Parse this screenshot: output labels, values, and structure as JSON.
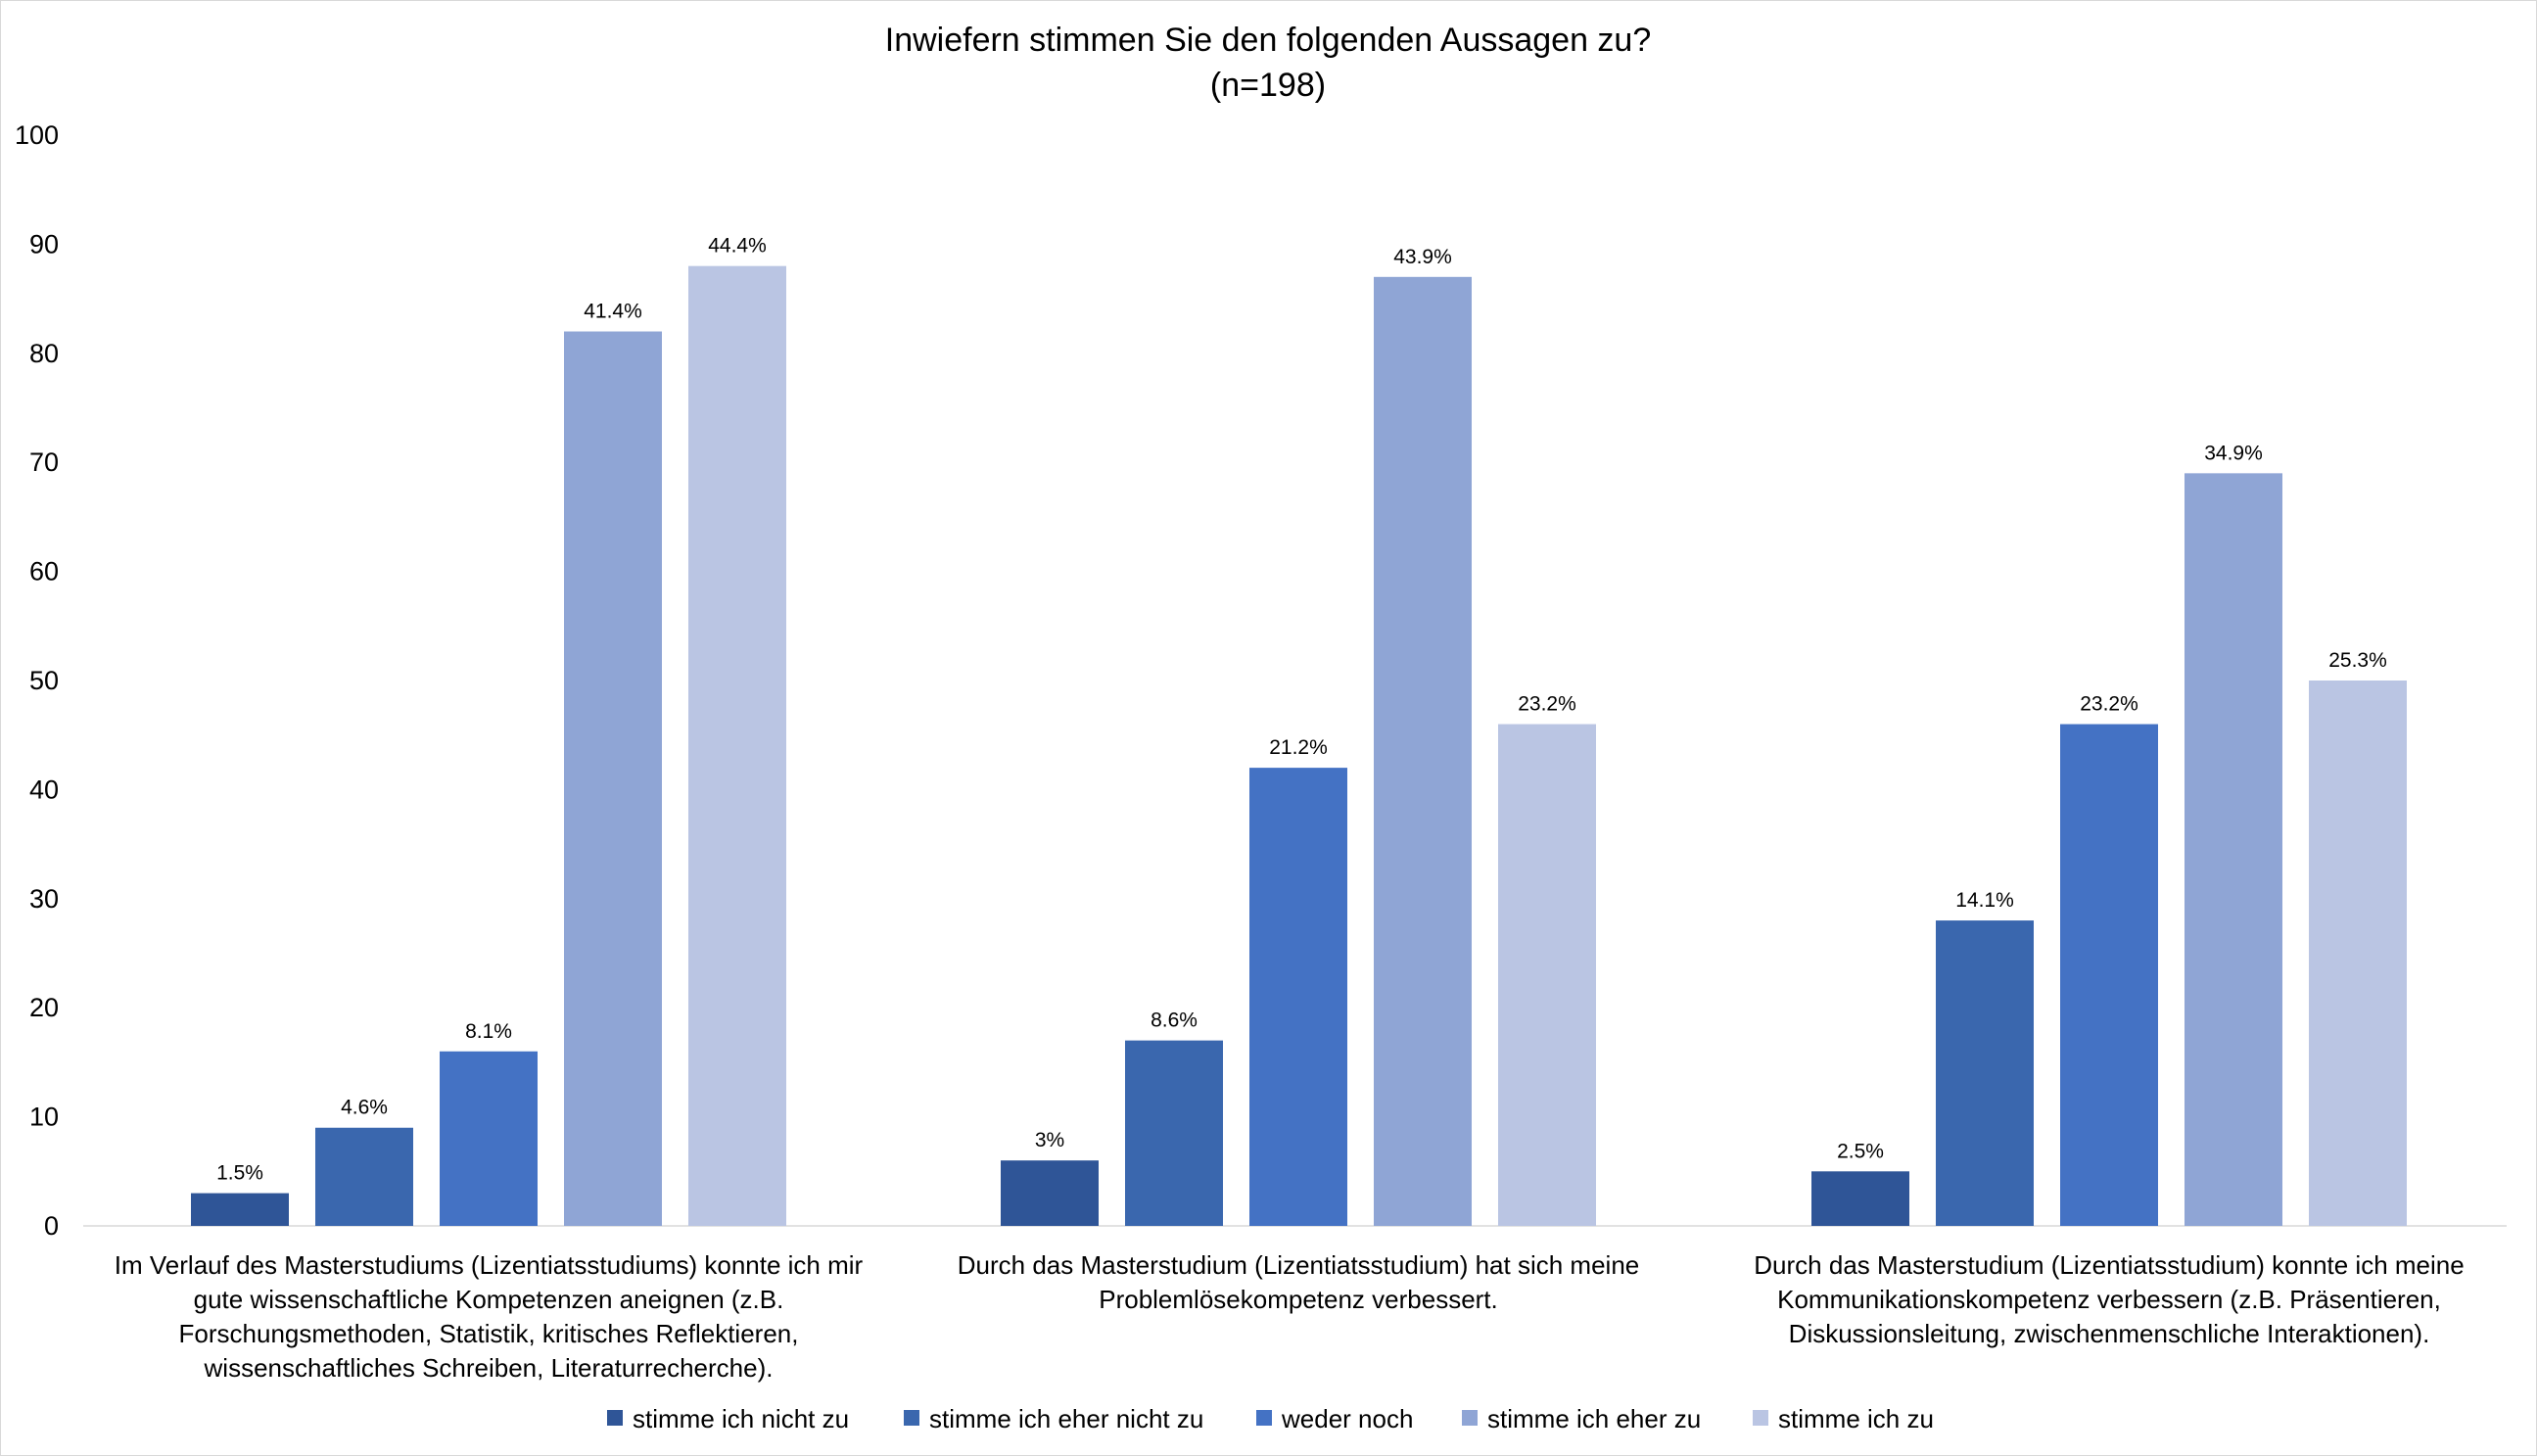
{
  "chart_data": {
    "type": "bar",
    "title": "Inwiefern stimmen Sie den folgenden Aussagen zu?",
    "subtitle": "(n=198)",
    "xlabel": "",
    "ylabel": "",
    "ylim": [
      0,
      100
    ],
    "yticks": [
      "0",
      "10",
      "20",
      "30",
      "40",
      "50",
      "60",
      "70",
      "80",
      "90",
      "100"
    ],
    "grid": false,
    "legend_position": "bottom",
    "categories": [
      [
        "Im Verlauf des Masterstudiums (Lizentiatsstudiums) konnte ich mir",
        "gute wissenschaftliche Kompetenzen aneignen (z.B.",
        "Forschungsmethoden, Statistik, kritisches Reflektieren,",
        "wissenschaftliches Schreiben, Literaturrecherche)."
      ],
      [
        "Durch das Masterstudium (Lizentiatsstudium) hat sich meine",
        "Problemlösekompetenz verbessert."
      ],
      [
        "Durch das Masterstudium (Lizentiatsstudium) konnte ich meine",
        "Kommunikationskompetenz verbessern (z.B. Präsentieren,",
        "Diskussionsleitung, zwischenmenschliche Interaktionen)."
      ]
    ],
    "series": [
      {
        "name": "stimme ich nicht zu",
        "color": "#2F5597",
        "values": [
          3,
          6,
          5
        ],
        "labels": [
          "1.5%",
          "3%",
          "2.5%"
        ]
      },
      {
        "name": "stimme ich eher nicht zu",
        "color": "#3A67AE",
        "values": [
          9,
          17,
          28
        ],
        "labels": [
          "4.6%",
          "8.6%",
          "14.1%"
        ]
      },
      {
        "name": "weder noch",
        "color": "#4472C4",
        "values": [
          16,
          42,
          46
        ],
        "labels": [
          "8.1%",
          "21.2%",
          "23.2%"
        ]
      },
      {
        "name": "stimme ich eher zu",
        "color": "#8FA5D5",
        "values": [
          82,
          87,
          69
        ],
        "labels": [
          "41.4%",
          "43.9%",
          "34.9%"
        ]
      },
      {
        "name": "stimme ich zu",
        "color": "#BAC5E3",
        "values": [
          88,
          46,
          50
        ],
        "labels": [
          "44.4%",
          "23.2%",
          "25.3%"
        ]
      }
    ]
  }
}
